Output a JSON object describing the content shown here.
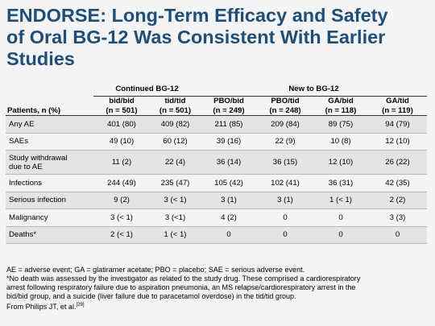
{
  "title": {
    "line1": "ENDORSE: Long-Term Efficacy and  Safety",
    "line2": "of Oral BG-12 Was Consistent With Earlier",
    "line3": "Studies"
  },
  "table": {
    "group_headers": [
      "Continued BG-12",
      "New to BG-12"
    ],
    "row_header": "Patients, n (%)",
    "columns": [
      {
        "name": "bid/bid",
        "n": "(n = 501)"
      },
      {
        "name": "tid/tid",
        "n": "(n = 501)"
      },
      {
        "name": "PBO/bid",
        "n": "(n = 249)"
      },
      {
        "name": "PBO/tid",
        "n": "(n = 248)"
      },
      {
        "name": "GA/bid",
        "n": "(n = 118)"
      },
      {
        "name": "GA/tid",
        "n": "(n = 119)"
      }
    ],
    "rows": [
      {
        "label": "Any AE",
        "values": [
          "401 (80)",
          "409 (82)",
          "211 (85)",
          "209 (84)",
          "89 (75)",
          "94 (79)"
        ]
      },
      {
        "label": "SAEs",
        "values": [
          "49 (10)",
          "60 (12)",
          "39 (16)",
          "22 (9)",
          "10 (8)",
          "12 (10)"
        ]
      },
      {
        "label": "Study withdrawal",
        "label2": "due to AE",
        "values": [
          "11 (2)",
          "22 (4)",
          "36 (14)",
          "36 (15)",
          "12 (10)",
          "26 (22)"
        ]
      },
      {
        "label": "Infections",
        "values": [
          "244 (49)",
          "235 (47)",
          "105 (42)",
          "102 (41)",
          "36 (31)",
          "42 (35)"
        ]
      },
      {
        "label": "Serious infection",
        "values": [
          "9 (2)",
          "3 (< 1)",
          "3 (1)",
          "3 (1)",
          "1 (< 1)",
          "2 (2)"
        ]
      },
      {
        "label": "Malignancy",
        "values": [
          "3 (< 1)",
          "3 (<1)",
          "4 (2)",
          "0",
          "0",
          "3 (3)"
        ]
      },
      {
        "label": "Deaths*",
        "values": [
          "2 (< 1)",
          "1 (< 1)",
          "0",
          "0",
          "0",
          "0"
        ]
      }
    ]
  },
  "footnotes": {
    "abbrev": "AE = adverse event; GA = glatiramer acetate; PBO = placebo; SAE = serious adverse event.",
    "death_line1": "*No death was assessed by the investigator as related to the study drug. These comprised a cardiorespiratory",
    "death_line2": "arrest following respiratory failure due to aspiration pneumonia, an MS relapse/cardiorespiratory arrest in the",
    "death_line3": "bid/bid group, and a suicide (liver failure due to paracetamol overdose) in the tid/tid group.",
    "source": "From Philips JT, et al.",
    "ref": "[29]"
  }
}
